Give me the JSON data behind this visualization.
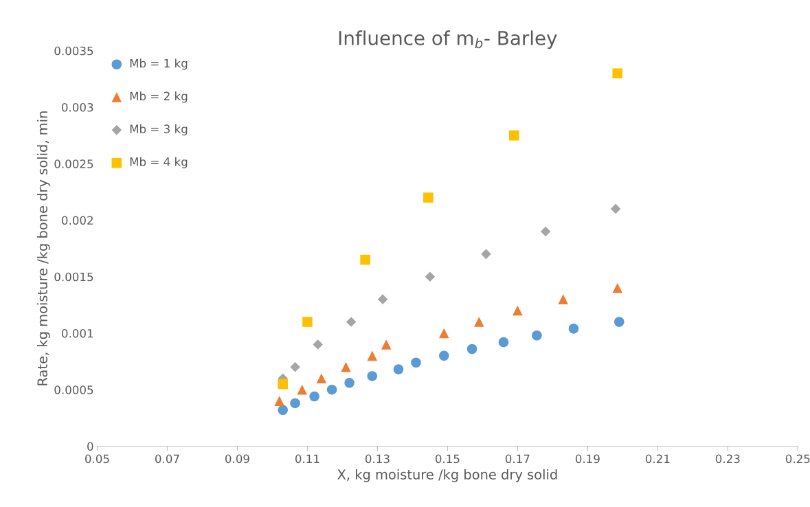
{
  "chart_data": {
    "type": "scatter",
    "title": "Influence of m$_{b}$- Barley",
    "xlabel": "X, kg moisture /kg bone dry solid",
    "ylabel": "Rate, kg moisture /kg bone dry solid, min",
    "xlim": [
      0.05,
      0.25
    ],
    "xticks": [
      0.05,
      0.07,
      0.09,
      0.11,
      0.13,
      0.15,
      0.17,
      0.19,
      0.21,
      0.23,
      0.25
    ],
    "ylim": [
      0,
      0.0035
    ],
    "yticks": [
      0,
      0.0005,
      0.001,
      0.0015,
      0.002,
      0.0025,
      0.003,
      0.0035
    ],
    "grid": false,
    "legend": "top left",
    "series": [
      {
        "name": "Mb = 1 kg",
        "color": "#5b9bd5",
        "marker": "circle",
        "x": [
          0.103,
          0.1065,
          0.112,
          0.117,
          0.122,
          0.1285,
          0.136,
          0.141,
          0.149,
          0.157,
          0.166,
          0.1755,
          0.186,
          0.199
        ],
        "values": [
          0.00032,
          0.00038,
          0.00044,
          0.0005,
          0.00056,
          0.00062,
          0.00068,
          0.00074,
          0.0008,
          0.00086,
          0.00092,
          0.00098,
          0.00104,
          0.0011
        ]
      },
      {
        "name": "Mb = 2 kg",
        "color": "#ed7d31",
        "marker": "triangle",
        "x": [
          0.102,
          0.1085,
          0.114,
          0.121,
          0.1285,
          0.1325,
          0.149,
          0.159,
          0.17,
          0.183,
          0.1985
        ],
        "values": [
          0.0004,
          0.0005,
          0.0006,
          0.0007,
          0.0008,
          0.0009,
          0.001,
          0.0011,
          0.0012,
          0.0013,
          0.0014
        ]
      },
      {
        "name": "Mb = 3 kg",
        "color": "#a5a5a5",
        "marker": "diamond",
        "x": [
          0.103,
          0.1065,
          0.113,
          0.1225,
          0.1315,
          0.145,
          0.161,
          0.178,
          0.198
        ],
        "values": [
          0.0006,
          0.0007,
          0.0009,
          0.0011,
          0.0013,
          0.0015,
          0.0017,
          0.0019,
          0.0021
        ]
      },
      {
        "name": "Mb = 4 kg",
        "color": "#ffc000",
        "marker": "square",
        "x": [
          0.103,
          0.11,
          0.1265,
          0.1445,
          0.169,
          0.1985
        ],
        "values": [
          0.00055,
          0.0011,
          0.00165,
          0.0022,
          0.00275,
          0.0033
        ]
      }
    ]
  }
}
